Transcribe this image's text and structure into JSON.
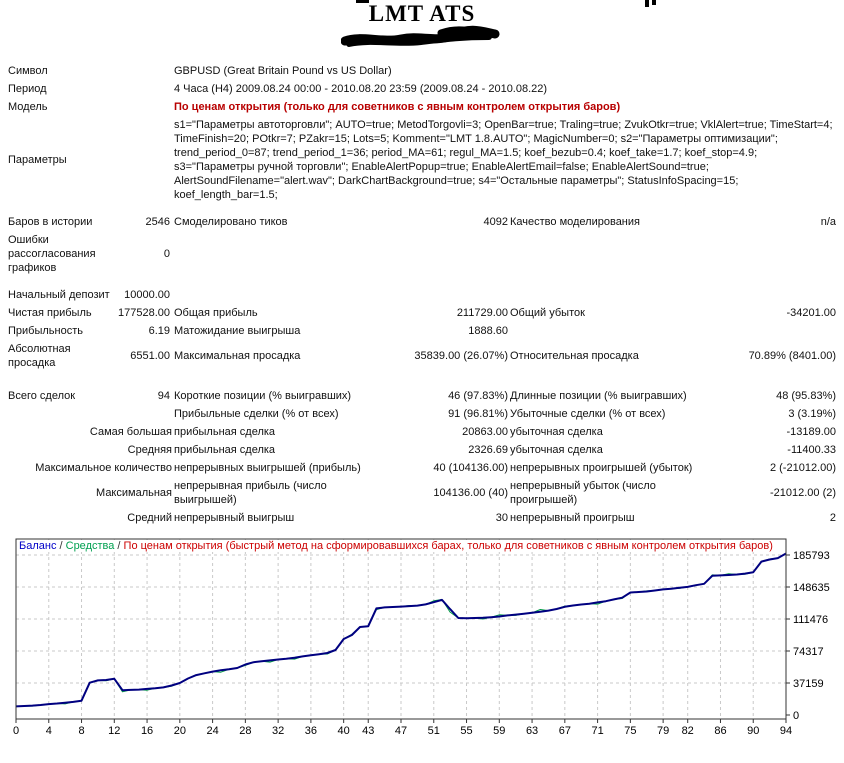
{
  "page": {
    "title": "LMT ATS"
  },
  "report": {
    "rows": [
      {
        "type": "wide",
        "label": "Символ",
        "value": "GBPUSD (Great Britain Pound vs US Dollar)"
      },
      {
        "type": "wide",
        "label": "Период",
        "value": "4 Часа (H4) 2009.08.24 00:00 - 2010.08.20 23:59 (2009.08.24 - 2010.08.22)"
      },
      {
        "type": "wide",
        "label": "Модель",
        "value": "По ценам открытия (только для советников с явным контролем открытия баров)",
        "style": "model"
      },
      {
        "type": "wide",
        "label": "Параметры",
        "value": "s1=\"Параметры автоторговли\"; AUTO=true; MetodTorgovli=3; OpenBar=true; Traling=true; ZvukOtkr=true; VklAlert=true; TimeStart=4; TimeFinish=20; POtkr=7; PZakr=15; Lots=5; Komment=\"LMT 1.8.AUTO\"; MagicNumber=0; s2=\"Параметры оптимизации\"; trend_period_0=87; trend_period_1=36; period_MA=61; regul_MA=1.5; koef_bezub=0.4; koef_take=1.7; koef_stop=4.9; s3=\"Параметры ручной торговли\"; EnableAlertPopup=true; EnableAlertEmail=false; EnableAlertSound=true; AlertSoundFilename=\"alert.wav\"; DarkChartBackground=true; s4=\"Остальные параметры\"; StatusInfoSpacing=15; koef_length_bar=1.5;"
      },
      {
        "type": "stat",
        "gap": "sm",
        "c1": "Баров в истории",
        "v1": "2546",
        "c2": "Смоделировано тиков",
        "v2": "4092",
        "c3": "Качество моделирования",
        "v3": "n/a"
      },
      {
        "type": "stat",
        "c1": "Ошибки рассогласования графиков",
        "v1": "0"
      },
      {
        "type": "stat",
        "gap": "sm",
        "c1": "Начальный депозит",
        "v1": "10000.00"
      },
      {
        "type": "stat",
        "c1": "Чистая прибыль",
        "v1": "177528.00",
        "c2": "Общая прибыль",
        "v2": "211729.00",
        "c3": "Общий убыток",
        "v3": "-34201.00"
      },
      {
        "type": "stat",
        "c1": "Прибыльность",
        "v1": "6.19",
        "c2": "Матожидание выигрыша",
        "v2": "1888.60"
      },
      {
        "type": "stat",
        "c1": "Абсолютная просадка",
        "v1": "6551.00",
        "c2": "Максимальная просадка",
        "v2": "35839.00 (26.07%)",
        "c3": "Относительная просадка",
        "v3": "70.89% (8401.00)"
      },
      {
        "type": "stat",
        "gap": "lg",
        "c1": "Всего сделок",
        "v1": "94",
        "c2": "Короткие позиции (% выигравших)",
        "v2": "46 (97.83%)",
        "c3": "Длинные позиции (% выигравших)",
        "v3": "48 (95.83%)"
      },
      {
        "type": "stat",
        "c2": "Прибыльные сделки (% от всех)",
        "v2": "91 (96.81%)",
        "c3": "Убыточные сделки (% от всех)",
        "v3": "3 (3.19%)"
      },
      {
        "type": "stat",
        "rlabel": "Самая большая",
        "c2": "прибыльная сделка",
        "v2": "20863.00",
        "c3": "убыточная сделка",
        "v3": "-13189.00"
      },
      {
        "type": "stat",
        "rlabel": "Средняя",
        "c2": "прибыльная сделка",
        "v2": "2326.69",
        "c3": "убыточная сделка",
        "v3": "-11400.33"
      },
      {
        "type": "stat",
        "rlabel": "Максимальное количество",
        "c2": "непрерывных выигрышей (прибыль)",
        "v2": "40 (104136.00)",
        "c3": "непрерывных проигрышей (убыток)",
        "v3": "2 (-21012.00)"
      },
      {
        "type": "stat",
        "rlabel": "Максимальная",
        "c2": "непрерывная прибыль (число выигрышей)",
        "v2": "104136.00 (40)",
        "c3": "непрерывный убыток (число проигрышей)",
        "v3": "-21012.00 (2)"
      },
      {
        "type": "stat",
        "rlabel": "Средний",
        "c2": "непрерывный выигрыш",
        "v2": "30",
        "c3": "непрерывный проигрыш",
        "v3": "2"
      }
    ]
  },
  "chart_data": {
    "type": "line",
    "title": "",
    "xlabel": "",
    "ylabel": "",
    "legend_position": "top-left",
    "grid": true,
    "separator": " / ",
    "legend": [
      {
        "label": "Баланс",
        "color": "#0000C8"
      },
      {
        "label": "Средства",
        "color": "#00A050"
      },
      {
        "label": "По ценам открытия (быстрый метод на сформировавшихся барах, только для советников с явным контролем открытия баров)",
        "color": "#CC0000"
      }
    ],
    "x_ticks": [
      0,
      4,
      8,
      12,
      16,
      20,
      24,
      28,
      32,
      36,
      40,
      43,
      47,
      51,
      55,
      59,
      63,
      67,
      71,
      75,
      79,
      82,
      86,
      90,
      94
    ],
    "y_ticks": [
      0,
      37159,
      74317,
      111476,
      148635,
      185793
    ],
    "xlim": [
      0,
      94
    ],
    "ylim": [
      0,
      207000
    ],
    "series": [
      {
        "name": "Баланс",
        "color": "#000080",
        "width": 2,
        "values": [
          10000,
          10400,
          10900,
          11600,
          12600,
          13400,
          14300,
          15200,
          16600,
          37463,
          40200,
          40600,
          42000,
          28811,
          29100,
          29500,
          30300,
          31000,
          32000,
          34200,
          37200,
          42400,
          46300,
          48400,
          50400,
          52000,
          53100,
          54600,
          58600,
          61300,
          62500,
          63400,
          64500,
          65400,
          66500,
          68000,
          69300,
          70600,
          72000,
          75500,
          88200,
          92900,
          102200,
          103000,
          123800,
          125000,
          125400,
          125900,
          126400,
          127000,
          128400,
          131000,
          133600,
          123000,
          112588,
          112300,
          112600,
          112900,
          113600,
          114400,
          115600,
          116600,
          117600,
          118700,
          119900,
          121200,
          123100,
          125600,
          127100,
          128300,
          129200,
          130700,
          132200,
          134200,
          136200,
          142200,
          142800,
          143400,
          144600,
          145900,
          146700,
          147700,
          148800,
          150700,
          152300,
          161600,
          162100,
          162600,
          163200,
          164200,
          165700,
          178100,
          180600,
          182200,
          187528
        ]
      },
      {
        "name": "Средства",
        "color": "#009944",
        "width": 1,
        "values": [
          10000,
          10400,
          10300,
          11600,
          12600,
          13400,
          12900,
          15200,
          16600,
          37463,
          40200,
          39700,
          42000,
          26911,
          29100,
          29500,
          28800,
          31000,
          32000,
          33400,
          37200,
          42400,
          46300,
          48400,
          50400,
          49700,
          53100,
          54600,
          57600,
          61300,
          62500,
          61400,
          64500,
          65400,
          64900,
          68000,
          69300,
          70600,
          70800,
          75500,
          88200,
          93800,
          102200,
          103000,
          122300,
          125000,
          125400,
          125900,
          127200,
          127000,
          128400,
          132600,
          134100,
          119500,
          112588,
          112300,
          112600,
          111500,
          113600,
          116300,
          115600,
          115700,
          117600,
          118700,
          122500,
          121200,
          123100,
          126500,
          127100,
          128300,
          129200,
          128800,
          132200,
          134200,
          135300,
          142200,
          142800,
          144100,
          144600,
          145900,
          146700,
          147000,
          148800,
          150700,
          152300,
          162700,
          162100,
          164000,
          163200,
          163400,
          165700,
          178100,
          181200,
          182200,
          187528
        ]
      }
    ]
  }
}
